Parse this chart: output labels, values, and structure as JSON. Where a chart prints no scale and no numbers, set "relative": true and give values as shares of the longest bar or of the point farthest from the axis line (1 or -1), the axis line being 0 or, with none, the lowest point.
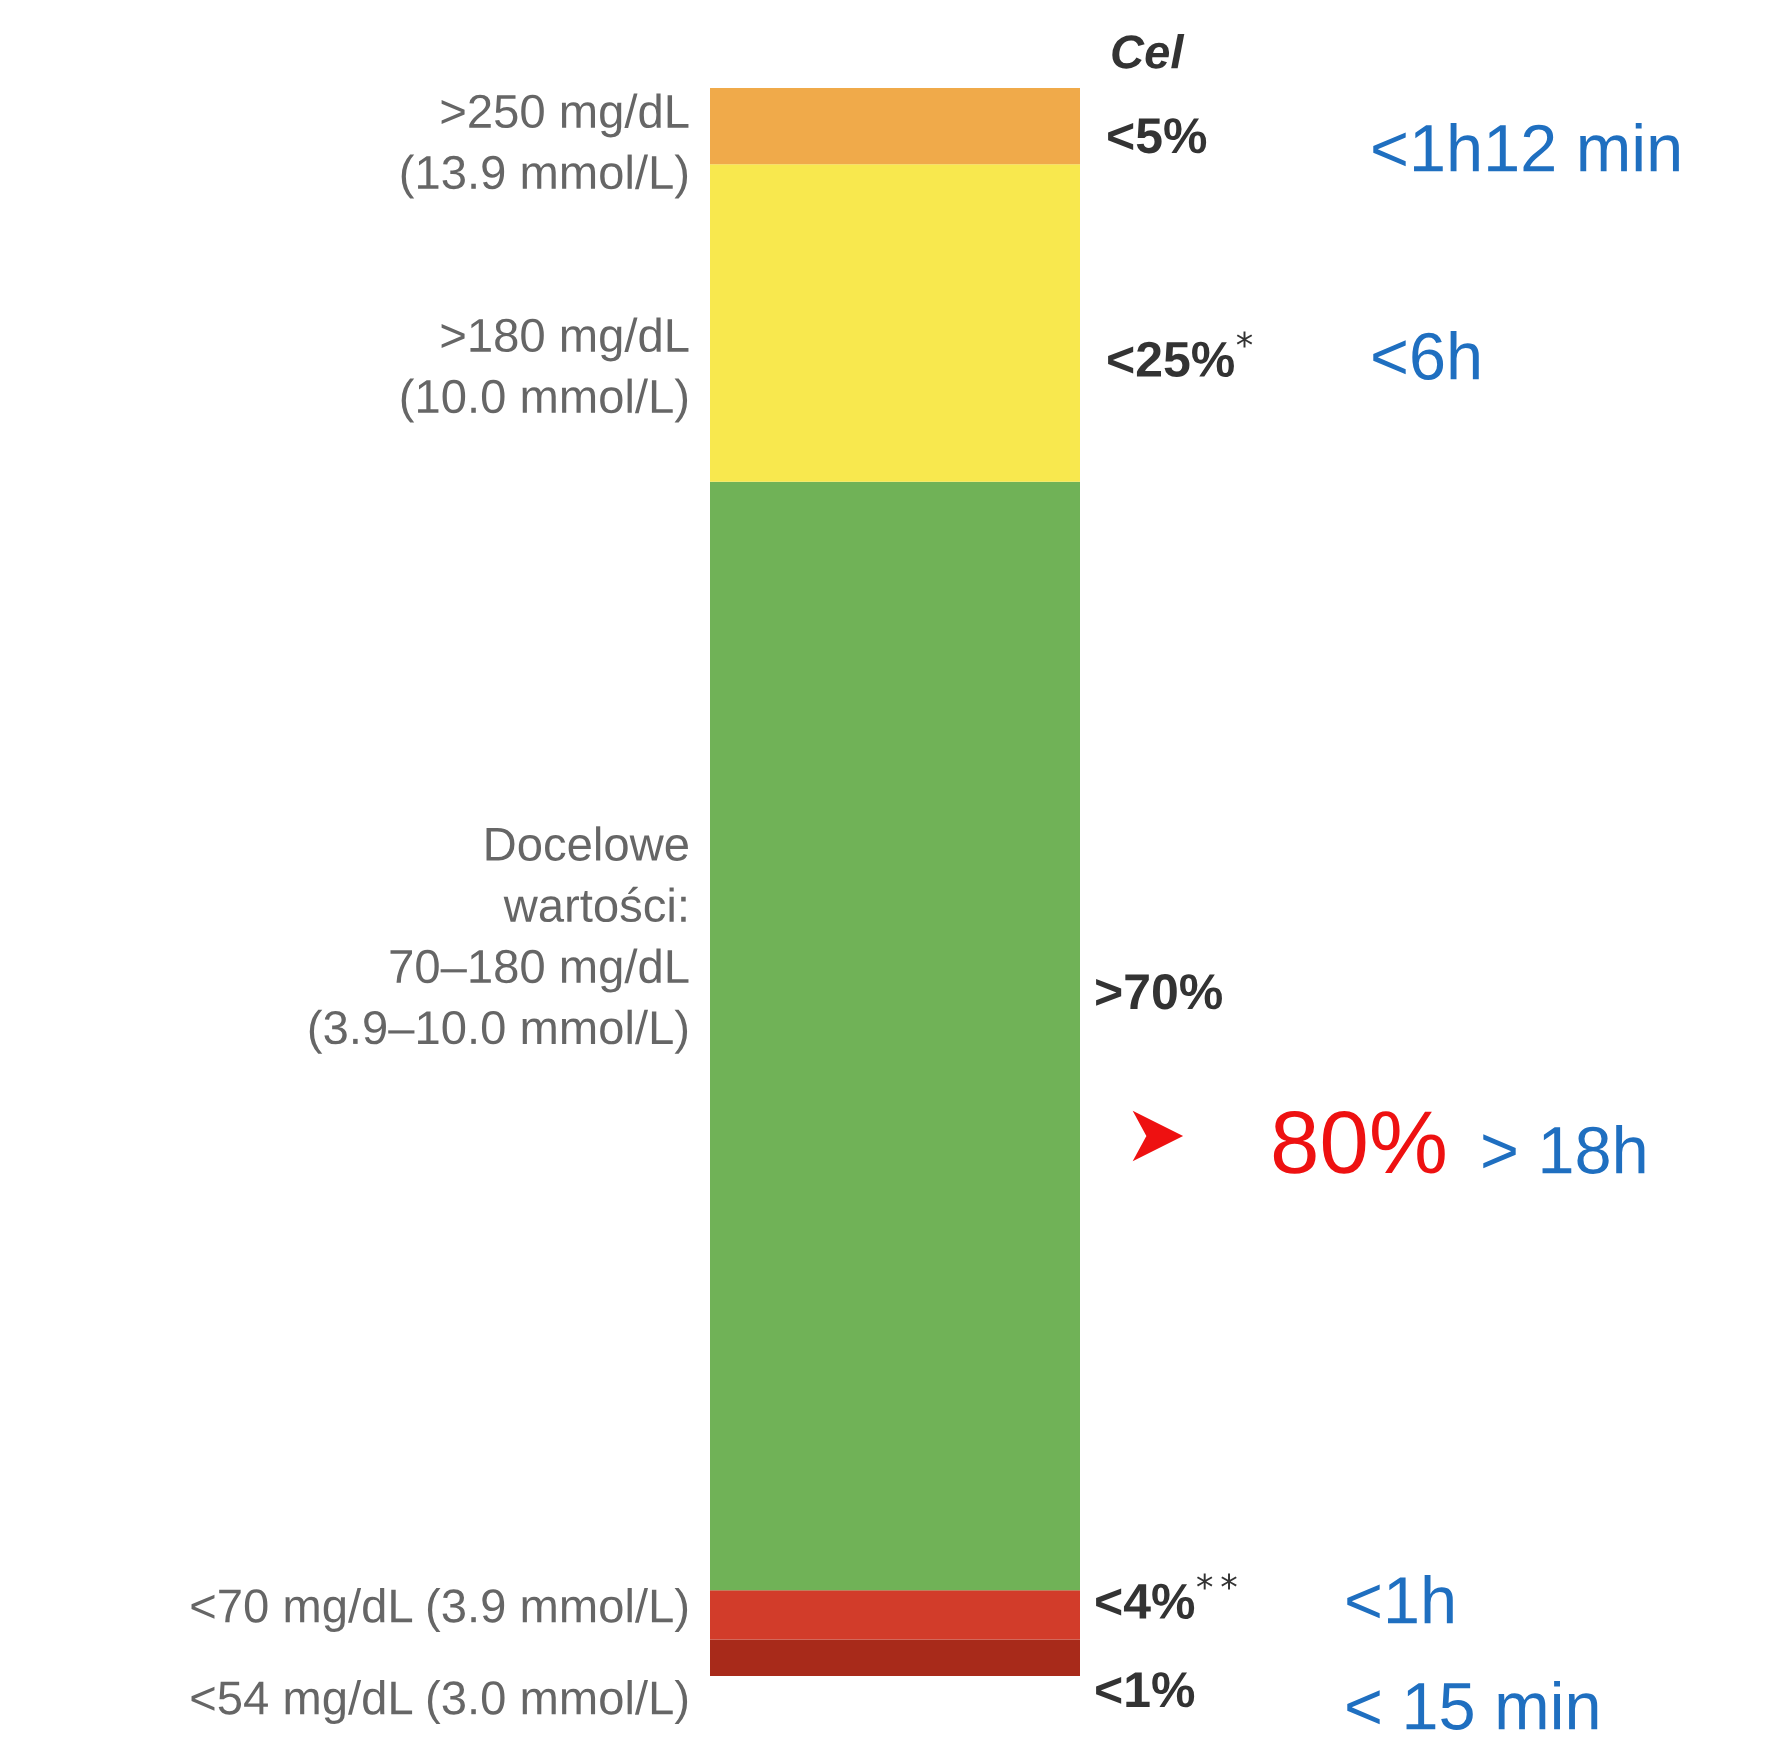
{
  "chart_data": {
    "type": "bar",
    "stacked": true,
    "relative": true,
    "categories": [
      null
    ],
    "series": [
      {
        "name": "<54 mg/dL (3.0 mmol/L)",
        "color": "#a82a1a",
        "values": [
          0.023
        ]
      },
      {
        "name": "<70 mg/dL (3.9 mmol/L)",
        "color": "#d23c2a",
        "values": [
          0.031
        ]
      },
      {
        "name": "Docelowe\nwartości:\n70–180 mg/dL\n(3.9–10.0 mmol/L)",
        "color": "#70b257",
        "values": [
          0.698
        ]
      },
      {
        "name": ">180 mg/dL\n(10.0 mmol/L)",
        "color": "#f8e84e",
        "values": [
          0.2
        ]
      },
      {
        "name": ">250 mg/dL\n(13.9 mmol/L)",
        "color": "#f0aa4a",
        "values": [
          0.048
        ]
      }
    ],
    "annotations": [
      "Cel",
      "<5%",
      "<25%$^{*}$",
      ">70%",
      "<4%$^{**}$",
      "<1%",
      "<1h12 min",
      "<6h",
      "80%",
      "> 18h",
      "<1h",
      "< 15 min"
    ]
  }
}
